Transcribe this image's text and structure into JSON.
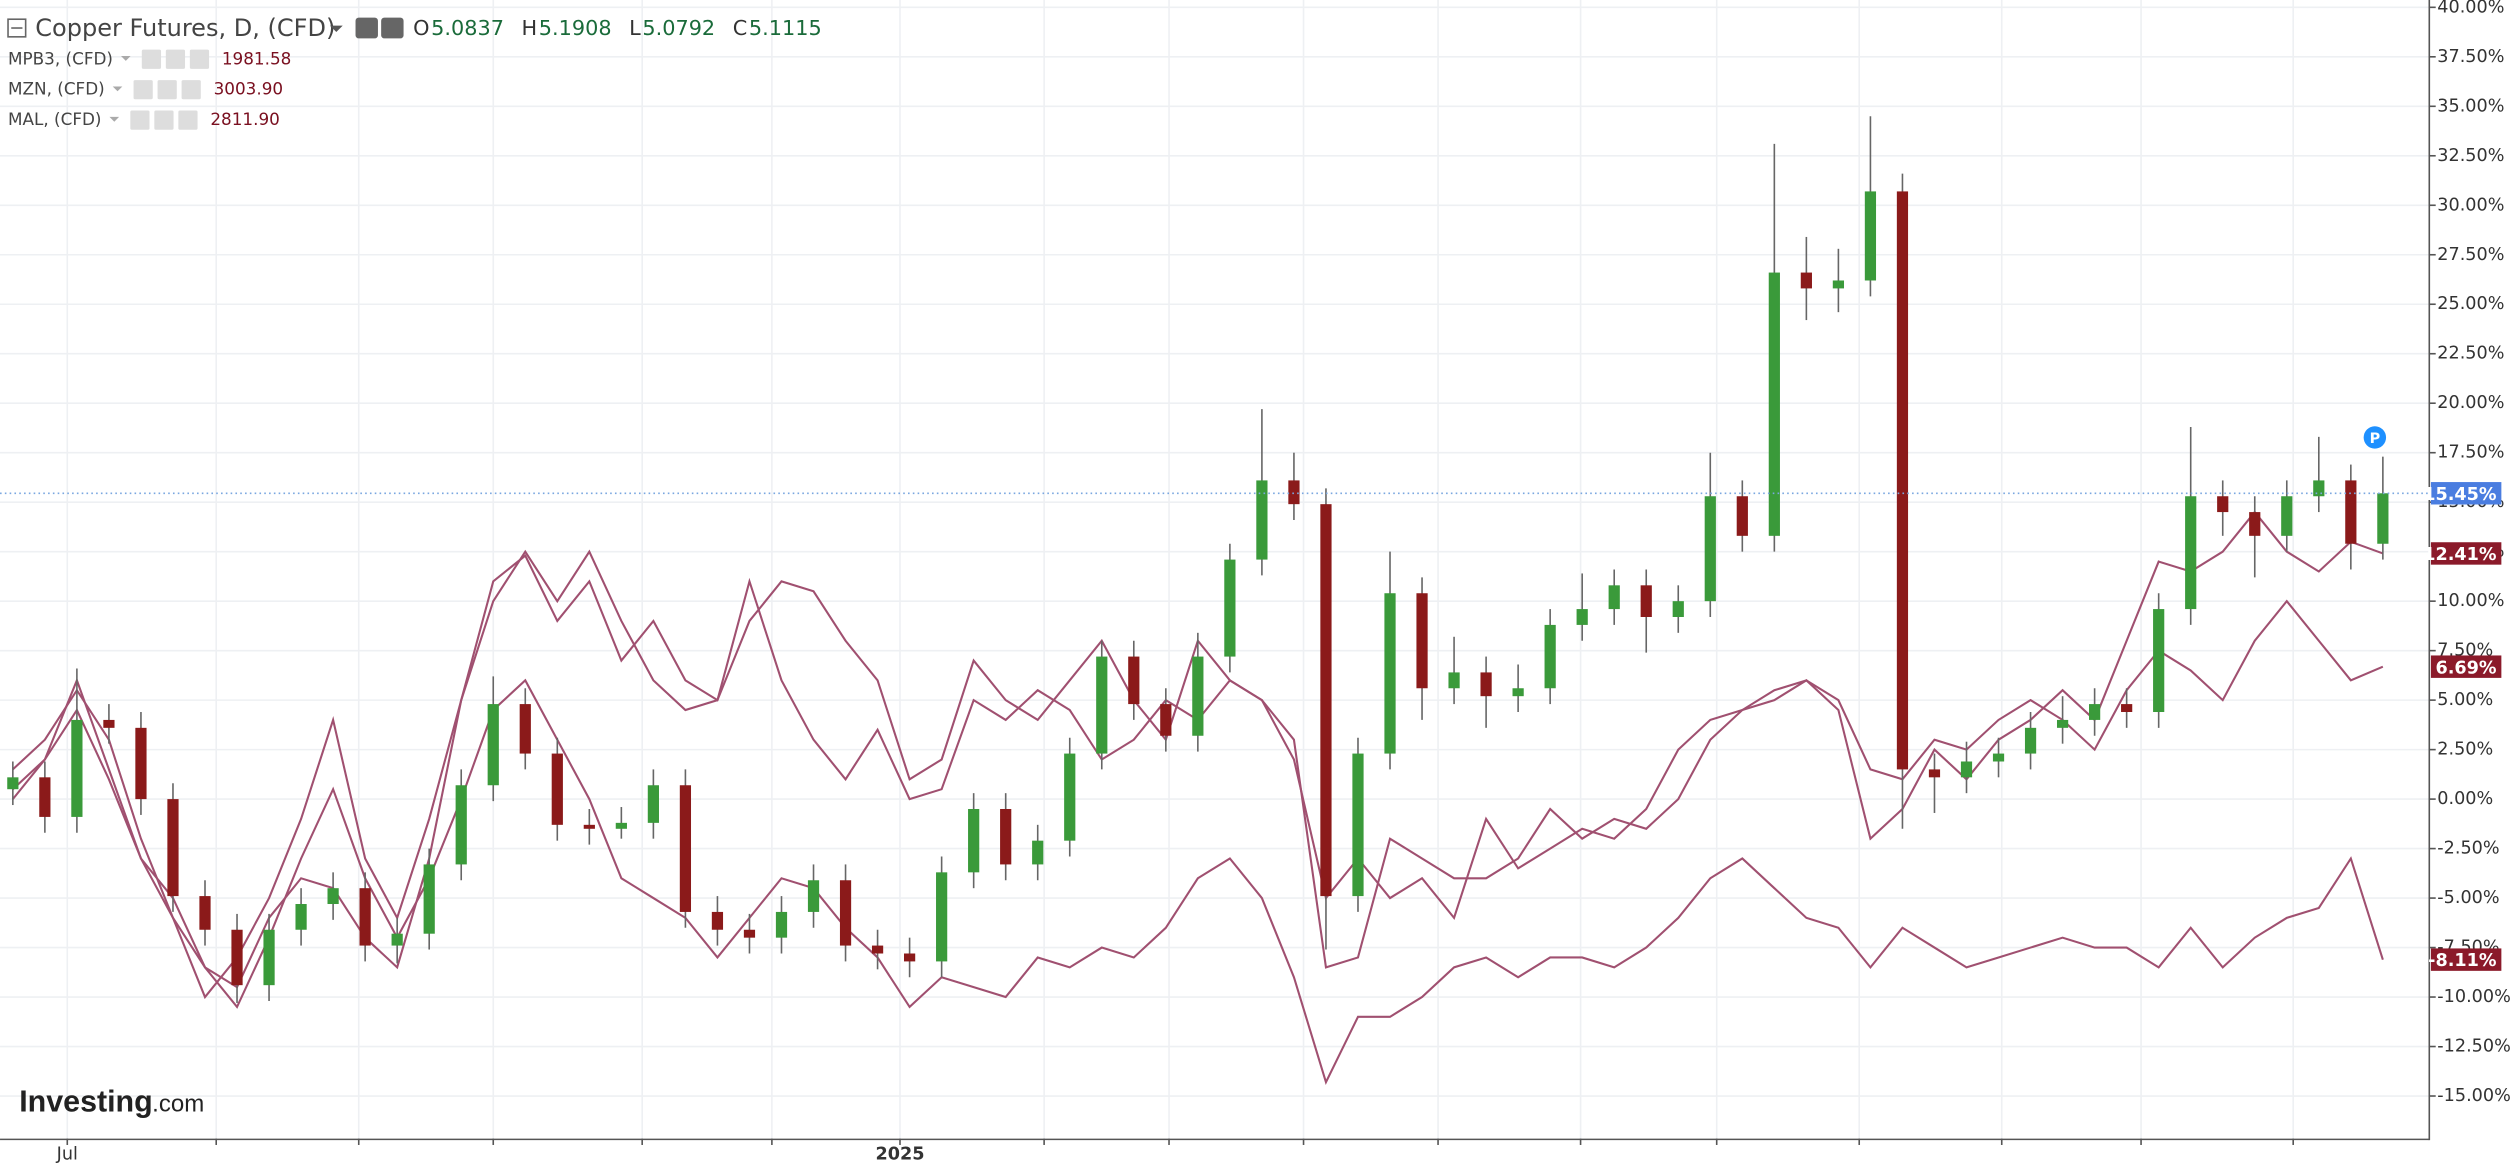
{
  "chart_data": {
    "type": "candlestick-compare",
    "title": "Copper Futures, D, (CFD)",
    "ohlc_header": [
      {
        "key": "O",
        "text": "5.0837"
      },
      {
        "key": "H",
        "text": "5.1908"
      },
      {
        "key": "L",
        "text": "5.0792"
      },
      {
        "key": "C",
        "text": "5.1115"
      }
    ],
    "watermark": [
      "Investing",
      ".com"
    ],
    "marker": "P",
    "categories": [
      null,
      null,
      "Jul",
      null,
      null,
      null,
      null,
      null,
      null,
      null,
      null,
      null,
      null,
      null,
      null,
      null,
      null,
      null,
      null,
      null,
      null,
      null,
      null,
      null,
      null,
      null,
      null,
      null,
      "2025",
      null,
      null,
      null,
      null,
      null,
      null,
      null,
      null,
      null,
      null,
      null,
      null,
      null,
      null,
      null,
      null,
      null,
      null,
      null,
      null,
      null,
      null,
      null,
      null,
      null,
      null,
      null,
      null,
      null,
      null,
      null,
      null,
      null,
      null,
      null,
      null,
      null,
      null,
      null,
      null,
      null,
      null,
      null,
      null,
      null,
      null
    ],
    "candles": {
      "up_color": "#3a9a3a",
      "down_color": "#8b1a1a",
      "end_label": "15.45%",
      "end_color": "#4a7de0",
      "open": [
        0.5,
        1.1,
        -0.9,
        4.0,
        3.6,
        0.0,
        -4.9,
        -6.6,
        -9.4,
        -6.6,
        -5.3,
        -4.5,
        -7.4,
        -6.8,
        -3.3,
        0.7,
        4.8,
        2.3,
        -1.3,
        -1.5,
        -1.2,
        0.7,
        -5.7,
        -6.6,
        -7.0,
        -5.7,
        -4.1,
        -7.4,
        -7.8,
        -8.2,
        -3.7,
        -0.5,
        -3.3,
        -2.1,
        2.3,
        7.2,
        4.8,
        3.2,
        7.2,
        12.1,
        16.1,
        14.9,
        -4.9,
        2.3,
        10.4,
        5.6,
        6.4,
        5.2,
        5.6,
        8.8,
        9.6,
        10.8,
        9.2,
        10.0,
        15.3,
        13.3,
        26.6,
        25.8,
        26.2,
        30.7,
        1.5,
        1.1,
        1.9,
        2.3,
        3.6,
        4.0,
        4.8,
        4.4,
        9.6,
        15.3,
        14.5,
        13.3,
        15.3,
        16.1,
        12.9
      ],
      "high": [
        1.9,
        1.9,
        6.6,
        4.8,
        4.4,
        0.8,
        -4.1,
        -5.8,
        -5.8,
        -4.5,
        -3.7,
        -3.7,
        -6.0,
        -2.5,
        1.5,
        6.2,
        5.6,
        3.1,
        -0.5,
        -0.4,
        1.5,
        1.5,
        -4.9,
        -5.8,
        -4.9,
        -3.3,
        -3.3,
        -6.6,
        -7.0,
        -2.9,
        0.3,
        0.3,
        -1.3,
        3.1,
        8.0,
        8.0,
        5.6,
        8.4,
        12.9,
        19.7,
        17.5,
        15.7,
        3.1,
        12.5,
        11.2,
        8.2,
        7.2,
        6.8,
        9.6,
        11.4,
        11.6,
        11.6,
        10.8,
        17.5,
        16.1,
        33.1,
        28.4,
        27.8,
        34.5,
        31.6,
        2.3,
        2.9,
        3.1,
        4.4,
        5.2,
        5.6,
        5.6,
        10.4,
        18.8,
        16.1,
        15.3,
        16.1,
        18.3,
        16.9,
        17.3
      ],
      "low": [
        -0.3,
        -1.7,
        -1.7,
        2.8,
        -0.8,
        -5.7,
        -7.4,
        -10.3,
        -10.2,
        -7.4,
        -6.1,
        -8.2,
        -8.3,
        -7.6,
        -4.1,
        -0.1,
        1.5,
        -2.1,
        -2.3,
        -2.0,
        -2.0,
        -6.5,
        -7.4,
        -7.8,
        -7.8,
        -6.5,
        -8.2,
        -8.6,
        -9.0,
        -9.0,
        -4.5,
        -4.1,
        -4.1,
        -2.9,
        1.5,
        4.0,
        2.4,
        2.4,
        6.4,
        11.3,
        14.1,
        -7.6,
        -5.7,
        1.5,
        4.0,
        4.8,
        3.6,
        4.4,
        4.8,
        8.0,
        8.8,
        7.4,
        8.4,
        9.2,
        12.5,
        12.5,
        24.2,
        24.6,
        25.4,
        -1.5,
        -0.7,
        0.3,
        1.1,
        1.5,
        2.8,
        3.2,
        3.6,
        3.6,
        8.8,
        13.3,
        11.2,
        12.5,
        14.5,
        11.6,
        12.1
      ],
      "close": [
        1.1,
        -0.9,
        4.0,
        3.6,
        0.0,
        -4.9,
        -6.6,
        -9.4,
        -6.6,
        -5.3,
        -4.5,
        -7.4,
        -6.8,
        -3.3,
        0.7,
        4.8,
        2.3,
        -1.3,
        -1.5,
        -1.2,
        0.7,
        -5.7,
        -6.6,
        -7.0,
        -5.7,
        -4.1,
        -7.4,
        -7.8,
        -8.2,
        -3.7,
        -0.5,
        -3.3,
        -2.1,
        2.3,
        7.2,
        4.8,
        3.2,
        7.2,
        12.1,
        16.1,
        14.9,
        -4.9,
        2.3,
        10.4,
        5.6,
        6.4,
        5.2,
        5.6,
        8.8,
        9.6,
        10.8,
        9.2,
        10.0,
        15.3,
        13.3,
        26.6,
        25.8,
        26.2,
        30.7,
        1.5,
        1.1,
        1.9,
        2.3,
        3.6,
        4.0,
        4.8,
        4.4,
        9.6,
        15.3,
        14.5,
        13.3,
        15.3,
        16.1,
        12.9,
        15.45
      ]
    },
    "series": [
      {
        "name": "MPB3, (CFD)",
        "legend_value": "1981.58",
        "end_label": "-8.11%",
        "color": "#a05070",
        "values": [
          0.5,
          2,
          4.5,
          1,
          -3,
          -6,
          -8.5,
          -10.5,
          -7,
          -3,
          0.5,
          -4,
          -7,
          -4,
          0,
          4.5,
          6,
          3,
          0,
          -4,
          -5,
          -6,
          -8,
          -6,
          -4,
          -4.5,
          -6.5,
          -8,
          -10.5,
          -9,
          -9.5,
          -10,
          -8,
          -8.5,
          -7.5,
          -8,
          -6.5,
          -4,
          -3,
          -5,
          -9,
          -14.3,
          -11,
          -11,
          -10,
          -8.5,
          -8,
          -9,
          -8,
          -8,
          -8.5,
          -7.5,
          -6,
          -4,
          -3,
          -4.5,
          -6,
          -6.5,
          -8.5,
          -6.5,
          -7.5,
          -8.5,
          -8,
          -7.5,
          -7,
          -7.5,
          -7.5,
          -8.5,
          -6.5,
          -8.5,
          -7,
          -6,
          -5.5,
          -3,
          -8.11
        ]
      },
      {
        "name": "MZN, (CFD)",
        "legend_value": "3003.90",
        "end_label": "12.41%",
        "color": "#a05070",
        "values": [
          1.5,
          3.0,
          5.5,
          3.0,
          -2,
          -6,
          -10,
          -8,
          -5,
          -1,
          4,
          -3,
          -6,
          -1,
          5,
          11,
          12.3,
          9,
          11,
          7,
          9,
          6,
          5,
          9,
          11,
          10.5,
          8,
          6,
          1,
          2,
          7,
          5,
          4,
          6,
          8,
          5,
          3,
          8,
          6,
          5,
          2,
          -5,
          -3,
          -5,
          -4,
          -6,
          -1,
          -3.5,
          -2.5,
          -1.5,
          -2,
          -0.5,
          2.5,
          4,
          4.5,
          5,
          6,
          4.5,
          -2,
          -0.5,
          2.5,
          1,
          3,
          4,
          5.5,
          4,
          8,
          12,
          11.5,
          12.5,
          14.5,
          12.5,
          11.5,
          13,
          12.41
        ]
      },
      {
        "name": "MAL, (CFD)",
        "legend_value": "2811.90",
        "end_label": "6.69%",
        "color": "#a05070",
        "values": [
          0,
          2,
          6,
          1.5,
          -3,
          -5,
          -8.5,
          -9.5,
          -6,
          -4,
          -4.5,
          -7,
          -8.5,
          -3,
          5,
          10,
          12.5,
          10,
          12.5,
          9,
          6,
          4.5,
          5,
          11,
          6,
          3,
          1,
          3.5,
          0,
          0.5,
          5,
          4,
          5.5,
          4.5,
          2,
          3,
          5,
          4,
          6,
          5,
          3,
          -8.5,
          -8,
          -2,
          -3,
          -4,
          -4,
          -3,
          -0.5,
          -2,
          -1,
          -1.5,
          0,
          3,
          4.5,
          5.5,
          6,
          5,
          1.5,
          1,
          3,
          2.5,
          4,
          5,
          4,
          2.5,
          5.5,
          7.5,
          6.5,
          5,
          8,
          10,
          8,
          6,
          6.69
        ]
      }
    ],
    "tag_color": "#8b1a2a",
    "ylim": [
      -17.15,
      40.37
    ],
    "yticks": [
      {
        "value": -15,
        "label": "-15.00%"
      },
      {
        "value": -12.5,
        "label": "-12.50%"
      },
      {
        "value": -10,
        "label": "-10.00%"
      },
      {
        "value": -7.5,
        "label": "-7.50%"
      },
      {
        "value": -5,
        "label": "-5.00%"
      },
      {
        "value": -2.5,
        "label": "-2.50%"
      },
      {
        "value": 0,
        "label": "0.00%"
      },
      {
        "value": 2.5,
        "label": "2.50%"
      },
      {
        "value": 5,
        "label": "5.00%"
      },
      {
        "value": 7.5,
        "label": "7.50%"
      },
      {
        "value": 10,
        "label": "10.00%"
      },
      {
        "value": 12.5,
        "label": "12.50%"
      },
      {
        "value": 15,
        "label": "15.00%"
      },
      {
        "value": 17.5,
        "label": "17.50%"
      },
      {
        "value": 20,
        "label": "20.00%"
      },
      {
        "value": 22.5,
        "label": "22.50%"
      },
      {
        "value": 25,
        "label": "25.00%"
      },
      {
        "value": 27.5,
        "label": "27.50%"
      },
      {
        "value": 30,
        "label": "30.00%"
      },
      {
        "value": 32.5,
        "label": "32.50%"
      },
      {
        "value": 35,
        "label": "35.00%"
      },
      {
        "value": 37.5,
        "label": "37.50%"
      },
      {
        "value": 40,
        "label": "40.00%"
      }
    ],
    "grid": true
  }
}
